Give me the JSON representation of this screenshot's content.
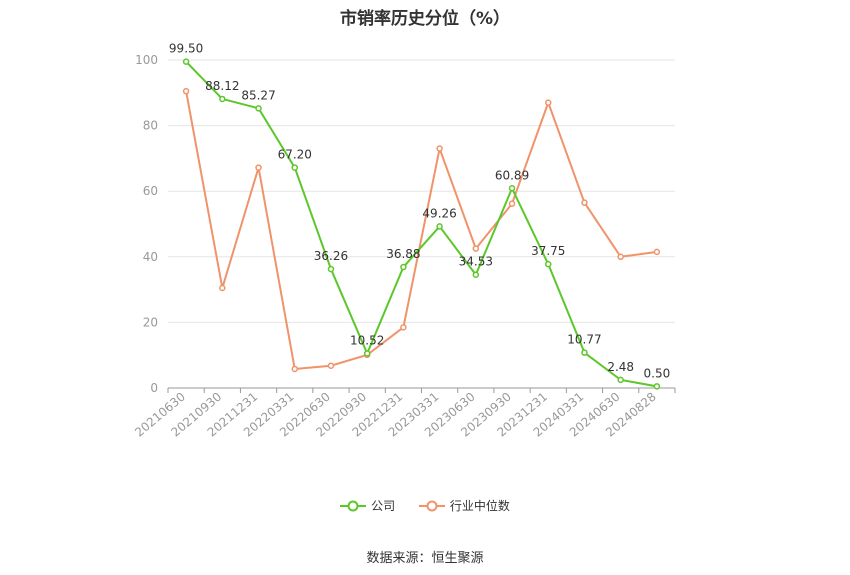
{
  "title": "市销率历史分位（%）",
  "source": "数据来源：恒生聚源",
  "colors": {
    "company": "#5cc72a",
    "industry": "#f0936a",
    "grid": "#e6e6e6",
    "axis": "#999999"
  },
  "chart_data": {
    "type": "line",
    "title": "市销率历史分位（%）",
    "categories": [
      "20210630",
      "20210930",
      "20211231",
      "20220331",
      "20220630",
      "20220930",
      "20221231",
      "20230331",
      "20230630",
      "20230930",
      "20231231",
      "20240331",
      "20240630",
      "20240828"
    ],
    "ylim": [
      0,
      100
    ],
    "yticks": [
      0,
      20,
      40,
      60,
      80,
      100
    ],
    "grid": true,
    "legend": "bottom-center",
    "series": [
      {
        "name": "公司",
        "values": [
          99.5,
          88.12,
          85.27,
          67.2,
          36.26,
          10.52,
          36.88,
          49.26,
          34.53,
          60.89,
          37.75,
          10.77,
          2.48,
          0.5
        ],
        "labels": [
          "99.50",
          "88.12",
          "85.27",
          "67.20",
          "36.26",
          "10.52",
          "36.88",
          "49.26",
          "34.53",
          "60.89",
          "37.75",
          "10.77",
          "2.48",
          "0.50"
        ]
      },
      {
        "name": "行业中位数",
        "values": [
          90.5,
          30.5,
          67.2,
          5.8,
          6.8,
          10.1,
          18.5,
          73.0,
          42.5,
          56.2,
          87.0,
          56.5,
          40.0,
          41.5
        ]
      }
    ]
  },
  "legend": {
    "company_label": "公司",
    "industry_label": "行业中位数"
  }
}
